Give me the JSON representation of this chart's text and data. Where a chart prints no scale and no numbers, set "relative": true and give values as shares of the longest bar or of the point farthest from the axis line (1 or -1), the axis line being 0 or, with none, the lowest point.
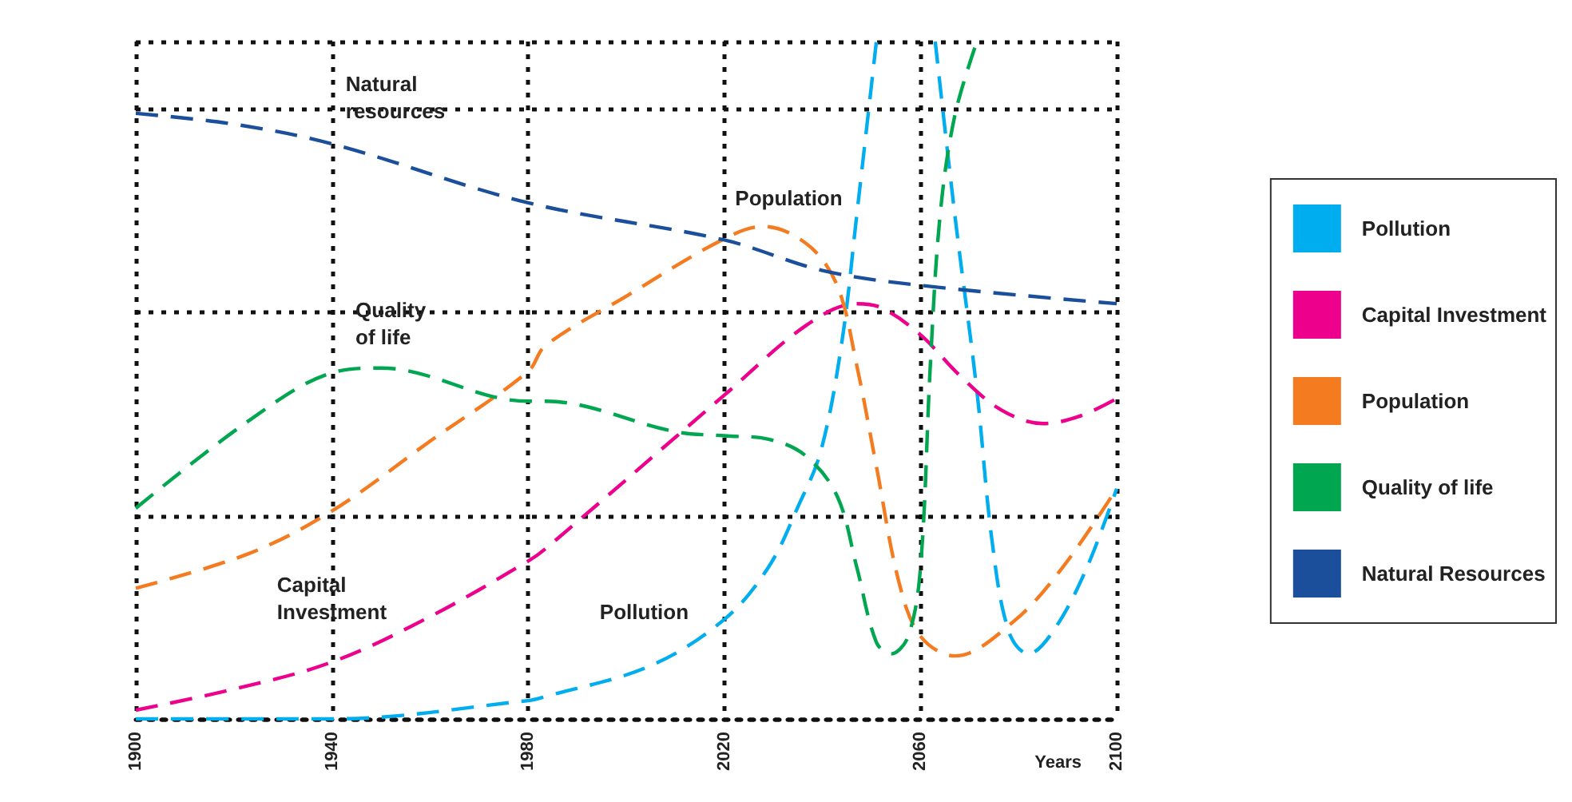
{
  "chart_data": {
    "type": "line",
    "xlabel": "Years",
    "relative": true,
    "xlim": [
      1900,
      2100
    ],
    "xticks": [
      1900,
      1940,
      1980,
      2020,
      2060,
      2100
    ],
    "grid": true,
    "legend": "right",
    "marker": "none",
    "line_style": "dashed",
    "series": [
      {
        "name": "Pollution",
        "color": "#00aeef",
        "x": [
          1900,
          1920,
          1940,
          1980,
          1983.5,
          2004.8,
          2020,
          2029,
          2035,
          2039.7,
          2044,
          2047,
          2051,
          2057,
          2063,
          2067,
          2071.5,
          2074.6,
          2078,
          2082,
          2087,
          2093.6,
          2100
        ],
        "values": [
          0,
          0,
          0,
          0.027,
          0.033,
          0.078,
          0.147,
          0.224,
          0.313,
          0.396,
          0.558,
          0.744,
          1,
          null,
          1,
          0.744,
          0.484,
          0.262,
          0.129,
          0.096,
          0.129,
          0.218,
          0.34
        ]
      },
      {
        "name": "Capital Investment",
        "color": "#ec008c",
        "x": [
          1900,
          1920,
          1940,
          1960,
          1980,
          1983.5,
          2020,
          2036.5,
          2047,
          2052,
          2060,
          2068,
          2076.5,
          2085,
          2092.5,
          2100
        ],
        "values": [
          0.013,
          0.044,
          0.084,
          0.151,
          0.233,
          0.251,
          0.478,
          0.58,
          0.613,
          0.607,
          0.567,
          0.507,
          0.456,
          0.436,
          0.447,
          0.473
        ]
      },
      {
        "name": "Population",
        "color": "#f47b20",
        "x": [
          1900,
          1923,
          1940,
          1960,
          1980,
          1983.5,
          2000,
          2019.5,
          2028,
          2037,
          2043,
          2047,
          2051,
          2055.6,
          2060,
          2067,
          2079,
          2089,
          2100
        ],
        "values": [
          0.193,
          0.244,
          0.307,
          0.41,
          0.513,
          0.551,
          0.624,
          0.707,
          0.727,
          0.7,
          0.64,
          0.522,
          0.373,
          0.202,
          0.122,
          0.093,
          0.144,
          0.224,
          0.34
        ]
      },
      {
        "name": "Quality of life",
        "color": "#00a650",
        "x": [
          1900,
          1923,
          1940,
          1950,
          1980,
          1983.5,
          2010,
          2020,
          2029,
          2036.5,
          2043,
          2047,
          2051,
          2054,
          2057.5,
          2060,
          2062,
          2064,
          2067,
          2071.5
        ],
        "values": [
          0.311,
          0.44,
          0.511,
          0.518,
          0.469,
          0.469,
          0.424,
          0.418,
          0.413,
          0.389,
          0.329,
          0.224,
          0.113,
          0.096,
          0.122,
          0.224,
          0.522,
          0.744,
          0.891,
          1
        ]
      },
      {
        "name": "Natural Resources",
        "color": "#1b4f9c",
        "x": [
          1900,
          1920,
          1940,
          1980,
          2020,
          2040,
          2060,
          2100
        ],
        "values": [
          0.894,
          0.878,
          0.849,
          0.762,
          0.707,
          0.662,
          0.64,
          0.613
        ]
      }
    ],
    "annotations": [
      "Natural\nresources",
      "Population",
      "Quality\nof life",
      "Capital\nInvestment",
      "Pollution"
    ]
  }
}
